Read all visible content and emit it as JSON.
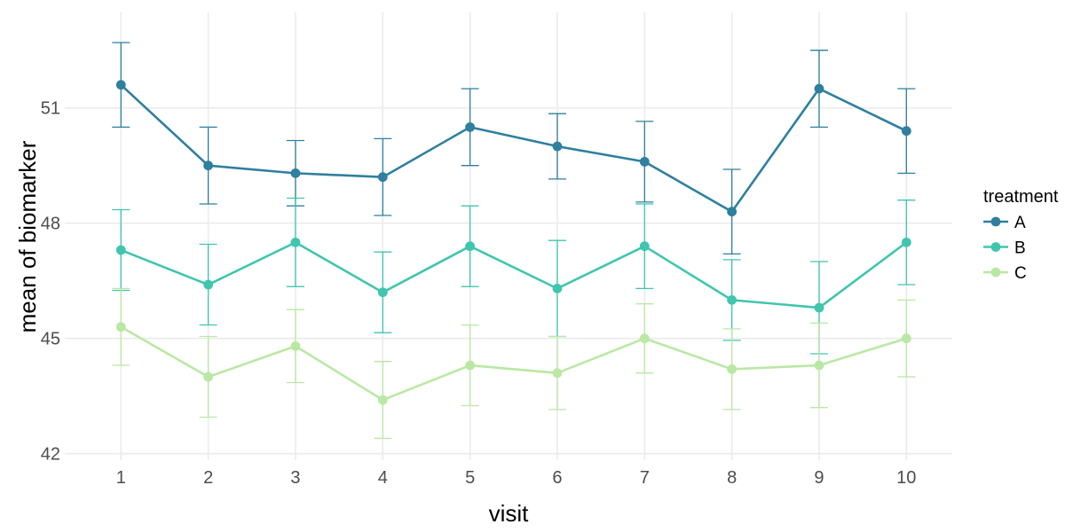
{
  "figure": {
    "background": "#ffffff",
    "grid_color": "#ebebeb",
    "tick_label_color": "#4d4d4d",
    "axis_title_color": "#000000"
  },
  "chart_data": {
    "type": "line",
    "title": "",
    "xlabel": "visit",
    "ylabel": "mean of biomarker",
    "x": [
      1,
      2,
      3,
      4,
      5,
      6,
      7,
      8,
      9,
      10
    ],
    "xtick_labels": [
      "1",
      "2",
      "3",
      "4",
      "5",
      "6",
      "7",
      "8",
      "9",
      "10"
    ],
    "yticks": [
      42,
      45,
      48,
      51
    ],
    "ytick_labels": [
      "42",
      "45",
      "48",
      "51"
    ],
    "ylim": [
      41.8,
      53.1
    ],
    "grid": true,
    "error_bars": true,
    "legend_title": "treatment",
    "legend_position": "right",
    "series": [
      {
        "name": "A",
        "color": "#2f7f9f",
        "values": [
          51.6,
          49.5,
          49.3,
          49.2,
          50.5,
          50.0,
          49.6,
          48.3,
          51.5,
          50.4
        ],
        "errors": [
          1.1,
          1.0,
          0.85,
          1.0,
          1.0,
          0.85,
          1.05,
          1.1,
          1.0,
          1.1
        ]
      },
      {
        "name": "B",
        "color": "#40c5ae",
        "values": [
          47.3,
          46.4,
          47.5,
          46.2,
          47.4,
          46.3,
          47.4,
          46.0,
          45.8,
          47.5
        ],
        "errors": [
          1.05,
          1.05,
          1.15,
          1.05,
          1.05,
          1.25,
          1.1,
          1.05,
          1.2,
          1.1
        ]
      },
      {
        "name": "C",
        "color": "#bae8a4",
        "values": [
          45.3,
          44.0,
          44.8,
          43.4,
          44.3,
          44.1,
          45.0,
          44.2,
          44.3,
          45.0
        ],
        "errors": [
          1.0,
          1.05,
          0.95,
          1.0,
          1.05,
          0.95,
          0.9,
          1.05,
          1.1,
          1.0
        ]
      }
    ]
  }
}
